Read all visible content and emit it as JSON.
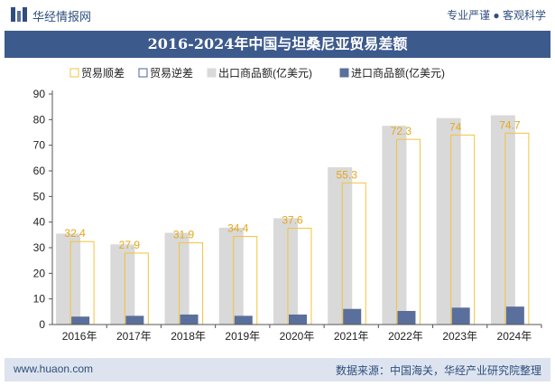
{
  "header": {
    "brand": "华经情报网",
    "slogan": "专业严谨 ● 客观科学",
    "title": "2016-2024年中国与坦桑尼亚贸易差额"
  },
  "footer": {
    "website": "www.huaon.com",
    "source": "数据来源：中国海关，华经产业研究院整理"
  },
  "colors": {
    "surplus": "#f2c33d",
    "deficit": "#4d6596",
    "export": "#d9d9d9",
    "import": "#5a6f9b",
    "title_bg": "#3d5a8c"
  },
  "chart_data": {
    "type": "bar",
    "categories": [
      "2016年",
      "2017年",
      "2018年",
      "2019年",
      "2020年",
      "2021年",
      "2022年",
      "2023年",
      "2024年"
    ],
    "series": [
      {
        "name": "贸易顺差",
        "values": [
          32.4,
          27.9,
          31.9,
          34.4,
          37.6,
          55.3,
          72.3,
          74,
          74.7
        ]
      },
      {
        "name": "贸易逆差",
        "values": [
          0,
          0,
          0,
          0,
          0,
          0,
          0,
          0,
          0
        ]
      },
      {
        "name": "出口商品额(亿美元)",
        "values": [
          35.5,
          31.3,
          35.8,
          37.8,
          41.5,
          61.4,
          77.6,
          80.6,
          81.7
        ]
      },
      {
        "name": "进口商品额(亿美元)",
        "values": [
          3.1,
          3.4,
          3.9,
          3.4,
          3.9,
          6.1,
          5.3,
          6.6,
          7.0
        ]
      }
    ],
    "ylim": [
      0,
      90
    ],
    "yticks": [
      0,
      10,
      20,
      30,
      40,
      50,
      60,
      70,
      80,
      90
    ],
    "legend_position": "top",
    "grid": false
  }
}
